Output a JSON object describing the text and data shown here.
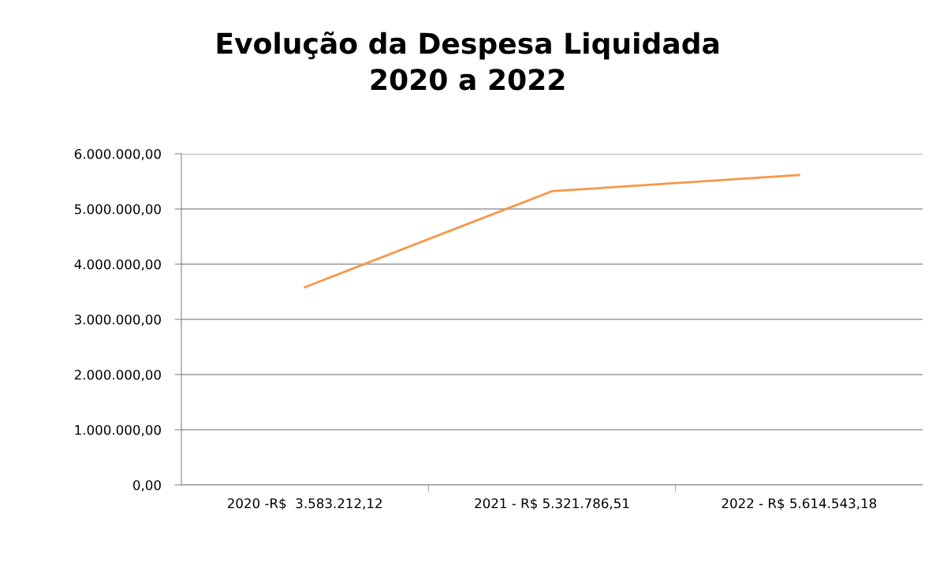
{
  "chart_data": {
    "type": "line",
    "title": "Evolução da Despesa Liquidada\n2020 a 2022",
    "categories": [
      "2020 -R$  3.583.212,12",
      "2021 - R$ 5.321.786,51",
      "2022 - R$ 5.614.543,18"
    ],
    "series": [
      {
        "color": "#f79646",
        "values": [
          3583212.12,
          5321786.51,
          5614543.18
        ]
      }
    ],
    "ylim": [
      0,
      6000000
    ],
    "yticks": [
      {
        "value": 0,
        "label": "0,00"
      },
      {
        "value": 1000000,
        "label": "1.000.000,00"
      },
      {
        "value": 2000000,
        "label": "2.000.000,00"
      },
      {
        "value": 3000000,
        "label": "3.000.000,00"
      },
      {
        "value": 4000000,
        "label": "4.000.000,00"
      },
      {
        "value": 5000000,
        "label": "5.000.000,00"
      },
      {
        "value": 6000000,
        "label": "6.000.000,00"
      }
    ],
    "grid": "y",
    "legend": false,
    "marker": "none",
    "line_style": "solid"
  }
}
